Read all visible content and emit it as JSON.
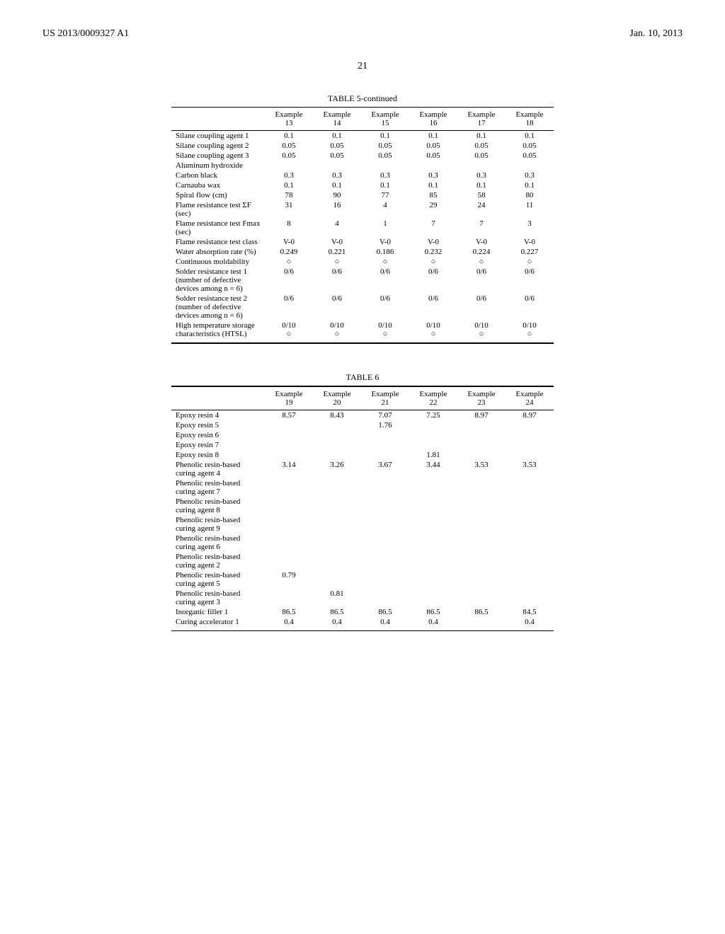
{
  "header": {
    "left": "US 2013/0009327 A1",
    "right": "Jan. 10, 2013"
  },
  "page_number": "21",
  "table5": {
    "title": "TABLE 5-continued",
    "columns": [
      "",
      "Example 13",
      "Example 14",
      "Example 15",
      "Example 16",
      "Example 17",
      "Example 18"
    ],
    "rows": [
      [
        "Silane coupling agent 1",
        "0.1",
        "0.1",
        "0.1",
        "0.1",
        "0.1",
        "0.1"
      ],
      [
        "Silane coupling agent 2",
        "0.05",
        "0.05",
        "0.05",
        "0.05",
        "0.05",
        "0.05"
      ],
      [
        "Silane coupling agent 3",
        "0.05",
        "0.05",
        "0.05",
        "0.05",
        "0.05",
        "0.05"
      ],
      [
        "Aluminum hydroxide",
        "",
        "",
        "",
        "",
        "",
        ""
      ],
      [
        "Carbon black",
        "0.3",
        "0.3",
        "0.3",
        "0.3",
        "0.3",
        "0.3"
      ],
      [
        "Carnauba wax",
        "0.1",
        "0.1",
        "0.1",
        "0.1",
        "0.1",
        "0.1"
      ],
      [
        "Spiral flow (cm)",
        "78",
        "90",
        "77",
        "85",
        "58",
        "80"
      ],
      [
        "Flame resistance test ΣF (sec)",
        "31",
        "16",
        "4",
        "29",
        "24",
        "11"
      ],
      [
        "Flame resistance test Fmax (sec)",
        "8",
        "4",
        "1",
        "7",
        "7",
        "3"
      ],
      [
        "Flame resistance test class",
        "V-0",
        "V-0",
        "V-0",
        "V-0",
        "V-0",
        "V-0"
      ],
      [
        "Water absorption rate (%)",
        "0.249",
        "0.221",
        "0.186",
        "0.232",
        "0.224",
        "0.227"
      ],
      [
        "Continuous moldability",
        "○",
        "○",
        "○",
        "○",
        "○",
        "○"
      ],
      [
        "Solder resistance test 1 (number of defective devices among n = 6)",
        "0/6",
        "0/6",
        "0/6",
        "0/6",
        "0/6",
        "0/6"
      ],
      [
        "Solder resistance test 2 (number of defective devices among n = 6)",
        "0/6",
        "0/6",
        "0/6",
        "0/6",
        "0/6",
        "0/6"
      ],
      [
        "High temperature storage characteristics (HTSL)",
        "0/10\n○",
        "0/10\n○",
        "0/10\n○",
        "0/10\n○",
        "0/10\n○",
        "0/10\n○"
      ]
    ]
  },
  "table6": {
    "title": "TABLE 6",
    "columns": [
      "",
      "Example 19",
      "Example 20",
      "Example 21",
      "Example 22",
      "Example 23",
      "Example 24"
    ],
    "rows": [
      [
        "Epoxy resin 4",
        "8.57",
        "8.43",
        "7.07",
        "7.25",
        "8.97",
        "8.97"
      ],
      [
        "Epoxy resin 5",
        "",
        "",
        "1.76",
        "",
        "",
        ""
      ],
      [
        "Epoxy resin 6",
        "",
        "",
        "",
        "",
        "",
        ""
      ],
      [
        "Epoxy resin 7",
        "",
        "",
        "",
        "",
        "",
        ""
      ],
      [
        "Epoxy resin 8",
        "",
        "",
        "",
        "1.81",
        "",
        ""
      ],
      [
        "Phenolic resin-based curing agent 4",
        "3.14",
        "3.26",
        "3.67",
        "3.44",
        "3.53",
        "3.53"
      ],
      [
        "Phenolic resin-based curing agent 7",
        "",
        "",
        "",
        "",
        "",
        ""
      ],
      [
        "Phenolic resin-based curing agent 8",
        "",
        "",
        "",
        "",
        "",
        ""
      ],
      [
        "Phenolic resin-based curing agent 9",
        "",
        "",
        "",
        "",
        "",
        ""
      ],
      [
        "Phenolic resin-based curing agent 6",
        "",
        "",
        "",
        "",
        "",
        ""
      ],
      [
        "Phenolic resin-based curing agent 2",
        "",
        "",
        "",
        "",
        "",
        ""
      ],
      [
        "Phenolic resin-based curing agent 5",
        "0.79",
        "",
        "",
        "",
        "",
        ""
      ],
      [
        "Phenolic resin-based curing agent 3",
        "",
        "0.81",
        "",
        "",
        "",
        ""
      ],
      [
        "Inorganic filler 1",
        "86.5",
        "86.5",
        "86.5",
        "86.5",
        "86.5",
        "84.5"
      ],
      [
        "Curing accelerator 1",
        "0.4",
        "0.4",
        "0.4",
        "0.4",
        "",
        "0.4"
      ]
    ]
  }
}
